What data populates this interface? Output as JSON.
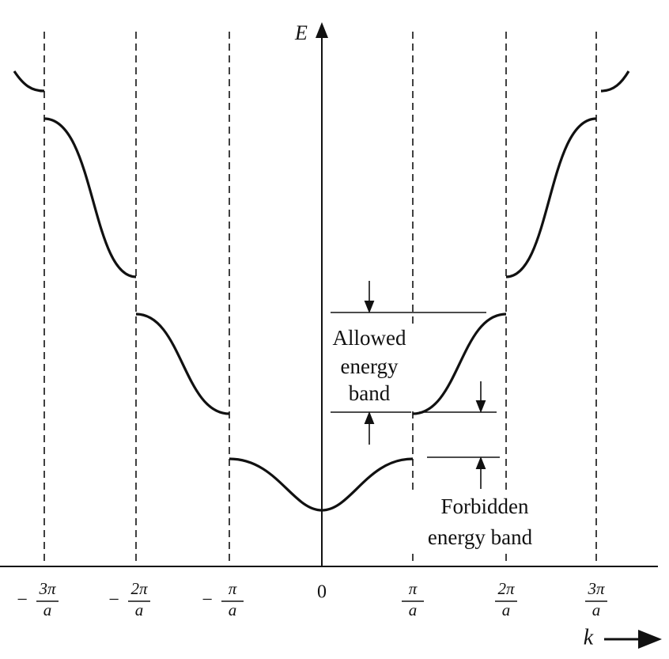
{
  "axes": {
    "y_label": "E",
    "x_label": "k"
  },
  "ticks": [
    {
      "sign": "−",
      "numerator": "3π",
      "denominator": "a"
    },
    {
      "sign": "−",
      "numerator": "2π",
      "denominator": "a"
    },
    {
      "sign": "−",
      "numerator": "π",
      "denominator": "a"
    },
    {
      "label": "0"
    },
    {
      "numerator": "π",
      "denominator": "a"
    },
    {
      "numerator": "2π",
      "denominator": "a"
    },
    {
      "numerator": "3π",
      "denominator": "a"
    }
  ],
  "annotations": {
    "allowed": [
      "Allowed",
      "energy",
      "band"
    ],
    "forbidden": [
      "Forbidden",
      "energy band"
    ]
  }
}
